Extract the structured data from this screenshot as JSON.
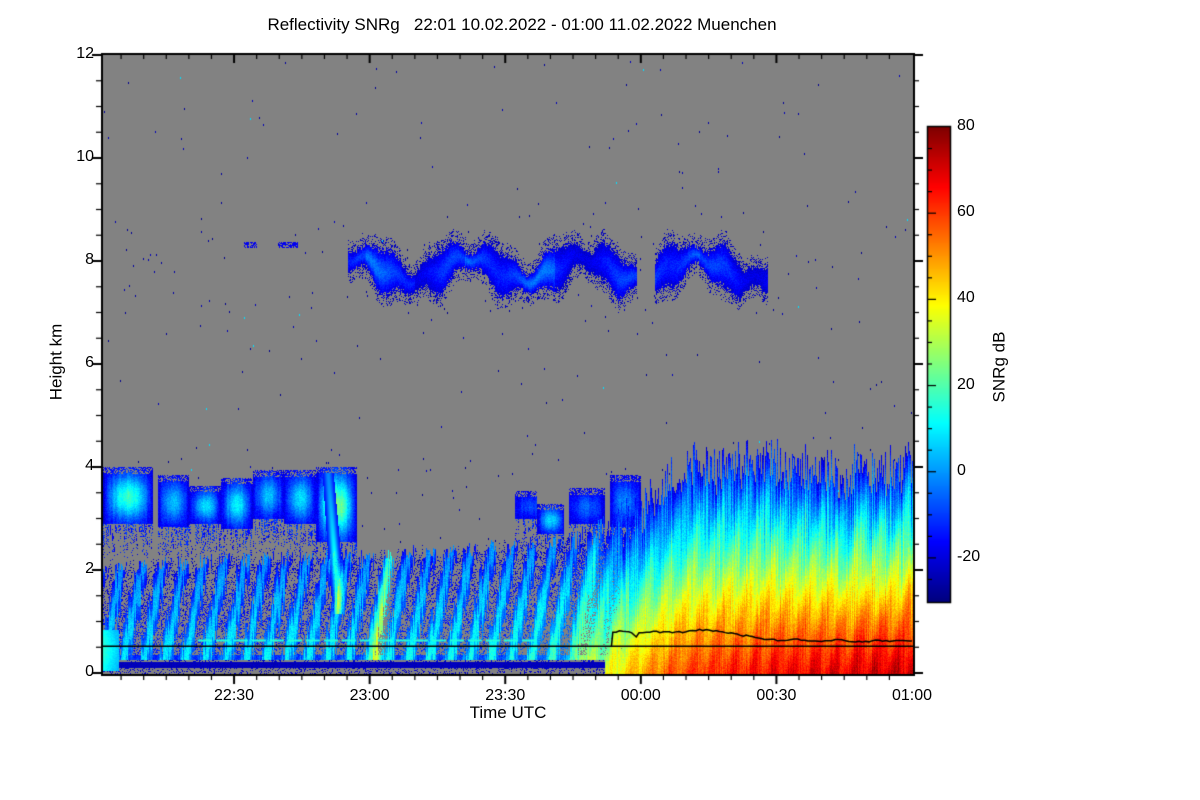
{
  "chart_data": {
    "type": "heatmap",
    "title": "Reflectivity SNRg   22:01 10.02.2022 - 01:00 11.02.2022 Muenchen",
    "xlabel": "Time UTC",
    "ylabel": "Height km",
    "x_axis": {
      "start": "22:01",
      "end": "01:00",
      "start_minutes": 1,
      "end_minutes": 180,
      "major_ticks": [
        {
          "minutes": 30,
          "label": "22:30"
        },
        {
          "minutes": 60,
          "label": "23:00"
        },
        {
          "minutes": 90,
          "label": "23:30"
        },
        {
          "minutes": 120,
          "label": "00:00"
        },
        {
          "minutes": 150,
          "label": "00:30"
        },
        {
          "minutes": 180,
          "label": "01:00"
        }
      ],
      "minor_step_minutes": 5
    },
    "y_axis": {
      "min": 0,
      "max": 12,
      "minor_step_km": 0.5,
      "major_ticks": [
        {
          "km": 0,
          "label": "0"
        },
        {
          "km": 2,
          "label": "2"
        },
        {
          "km": 4,
          "label": "4"
        },
        {
          "km": 6,
          "label": "6"
        },
        {
          "km": 8,
          "label": "8"
        },
        {
          "km": 10,
          "label": "10"
        },
        {
          "km": 12,
          "label": "12"
        }
      ]
    },
    "colorbar": {
      "label": "SNRg dB",
      "min": -30,
      "max": 80,
      "minor_step_db": 5,
      "colormap": "jet",
      "major_ticks": [
        {
          "db": -20,
          "label": "-20"
        },
        {
          "db": 0,
          "label": "0"
        },
        {
          "db": 20,
          "label": "20"
        },
        {
          "db": 40,
          "label": "40"
        },
        {
          "db": 60,
          "label": "60"
        },
        {
          "db": 80,
          "label": "80"
        }
      ]
    },
    "no_data_color": "#828282",
    "features": {
      "noise_specks": {
        "count": 430,
        "value_db": [
          -29,
          -23
        ],
        "cyan_fraction": 0.06,
        "cyan_value_db": 8
      },
      "cirrus_layer_8km": {
        "segments_minutes": [
          [
            55,
            119
          ],
          [
            123,
            148
          ]
        ],
        "center_km": 7.85,
        "thickness_km": [
          0.25,
          1.0
        ],
        "value_db": [
          -22,
          -4
        ],
        "bright_core_windows_minutes": [
          [
            59,
            70
          ],
          [
            81,
            101
          ],
          [
            122,
            133
          ]
        ],
        "thin_streak": {
          "minutes": [
            32,
            44
          ],
          "height_km": [
            8.27,
            8.38
          ],
          "value_db": -18
        }
      },
      "midlevel_clouds_3_4km": {
        "edge_value_db": -20,
        "puffs": [
          {
            "minutes": [
              1,
              12
            ],
            "top_km": 3.95,
            "base_km": 2.9,
            "core_db": 17
          },
          {
            "minutes": [
              13,
              20
            ],
            "top_km": 3.8,
            "base_km": 2.85,
            "core_db": 4
          },
          {
            "minutes": [
              20,
              27
            ],
            "top_km": 3.6,
            "base_km": 2.9,
            "core_db": 8
          },
          {
            "minutes": [
              27,
              34
            ],
            "top_km": 3.75,
            "base_km": 2.8,
            "core_db": 10
          },
          {
            "minutes": [
              34,
              41
            ],
            "top_km": 3.9,
            "base_km": 3.0,
            "core_db": 4
          },
          {
            "minutes": [
              41,
              48
            ],
            "top_km": 3.9,
            "base_km": 2.9,
            "core_db": 8
          },
          {
            "minutes": [
              48,
              57
            ],
            "top_km": 3.95,
            "base_km": 2.55,
            "core_db": 26
          },
          {
            "minutes": [
              92,
              99
            ],
            "top_km": 3.5,
            "base_km": 3.0,
            "core_db": -8
          },
          {
            "minutes": [
              97,
              103
            ],
            "top_km": 3.25,
            "base_km": 2.7,
            "core_db": 7
          },
          {
            "minutes": [
              104,
              112
            ],
            "top_km": 3.55,
            "base_km": 2.9,
            "core_db": -6
          },
          {
            "minutes": [
              113,
              120
            ],
            "top_km": 3.8,
            "base_km": 2.85,
            "core_db": -2
          }
        ],
        "bright_virga_streak": {
          "top_minute": 50.7,
          "slant_min_per_km": 0.9,
          "height_km": [
            1.15,
            3.9
          ],
          "peak_db": 34
        }
      },
      "boundary_layer": {
        "top_km_points": [
          [
            1,
            2.05
          ],
          [
            30,
            2.2
          ],
          [
            60,
            2.3
          ],
          [
            90,
            2.45
          ],
          [
            100,
            2.5
          ],
          [
            108,
            2.65
          ],
          [
            113,
            2.8
          ],
          [
            118,
            3.0
          ],
          [
            123,
            3.5
          ],
          [
            128,
            3.9
          ],
          [
            133,
            4.15
          ],
          [
            138,
            3.9
          ],
          [
            143,
            4.05
          ],
          [
            148,
            4.2
          ],
          [
            153,
            3.95
          ],
          [
            158,
            4.05
          ],
          [
            163,
            3.85
          ],
          [
            168,
            4.0
          ],
          [
            173,
            3.9
          ],
          [
            180,
            4.1
          ]
        ],
        "surface_value_db_points": [
          [
            1,
            -4
          ],
          [
            40,
            -2
          ],
          [
            70,
            0
          ],
          [
            90,
            1
          ],
          [
            100,
            5
          ],
          [
            105,
            10
          ],
          [
            110,
            26
          ],
          [
            115,
            40
          ],
          [
            120,
            48
          ],
          [
            125,
            55
          ],
          [
            130,
            60
          ],
          [
            140,
            63
          ],
          [
            150,
            66
          ],
          [
            160,
            68
          ],
          [
            170,
            70
          ],
          [
            180,
            72
          ]
        ],
        "top_value_db": -16,
        "fallstreak_period_minutes": 4.5,
        "fallstreak_slant_min_per_km": 2.2,
        "weak_phase_end_minute": 108,
        "yellow_streaks": [
          {
            "minute": 61,
            "slant_min_per_km": 1.6,
            "peak_db_boost": 46,
            "height_scale_km": 2.6
          },
          {
            "minute": 106.5,
            "slant_min_per_km": 1.5,
            "peak_db_boost": 26,
            "height_scale_km": 2.4
          }
        ],
        "surface_band_gap": {
          "minutes": [
            1,
            112
          ],
          "below_km": 0.26,
          "dark_band_km": [
            0.1,
            0.22
          ],
          "dark_band_value_db": -25
        },
        "left_edge_plume": {
          "minutes": [
            1,
            4.5
          ],
          "height_km": [
            0.05,
            0.85
          ],
          "value_db": 15
        }
      },
      "overlay_lines": {
        "horizontal_black_line_km": 0.52,
        "cyan_line": {
          "km": 0.63,
          "minutes": [
            22,
            97
          ],
          "value_db": 15
        },
        "sensor_trace_points": [
          [
            113.5,
            0.52
          ],
          [
            113.8,
            0.79
          ],
          [
            116,
            0.81
          ],
          [
            118,
            0.78
          ],
          [
            119,
            0.7
          ],
          [
            119.6,
            0.78
          ],
          [
            122,
            0.79
          ],
          [
            125,
            0.8
          ],
          [
            127,
            0.78
          ],
          [
            130,
            0.8
          ],
          [
            133,
            0.85
          ],
          [
            136,
            0.81
          ],
          [
            138,
            0.8
          ],
          [
            140,
            0.78
          ],
          [
            142,
            0.73
          ],
          [
            144,
            0.72
          ],
          [
            146,
            0.68
          ],
          [
            148,
            0.65
          ],
          [
            151,
            0.63
          ],
          [
            154,
            0.66
          ],
          [
            157,
            0.62
          ],
          [
            160,
            0.61
          ],
          [
            163,
            0.65
          ],
          [
            166,
            0.61
          ],
          [
            169,
            0.6
          ],
          [
            172,
            0.64
          ],
          [
            175,
            0.61
          ],
          [
            178,
            0.63
          ],
          [
            180,
            0.62
          ]
        ]
      }
    }
  }
}
